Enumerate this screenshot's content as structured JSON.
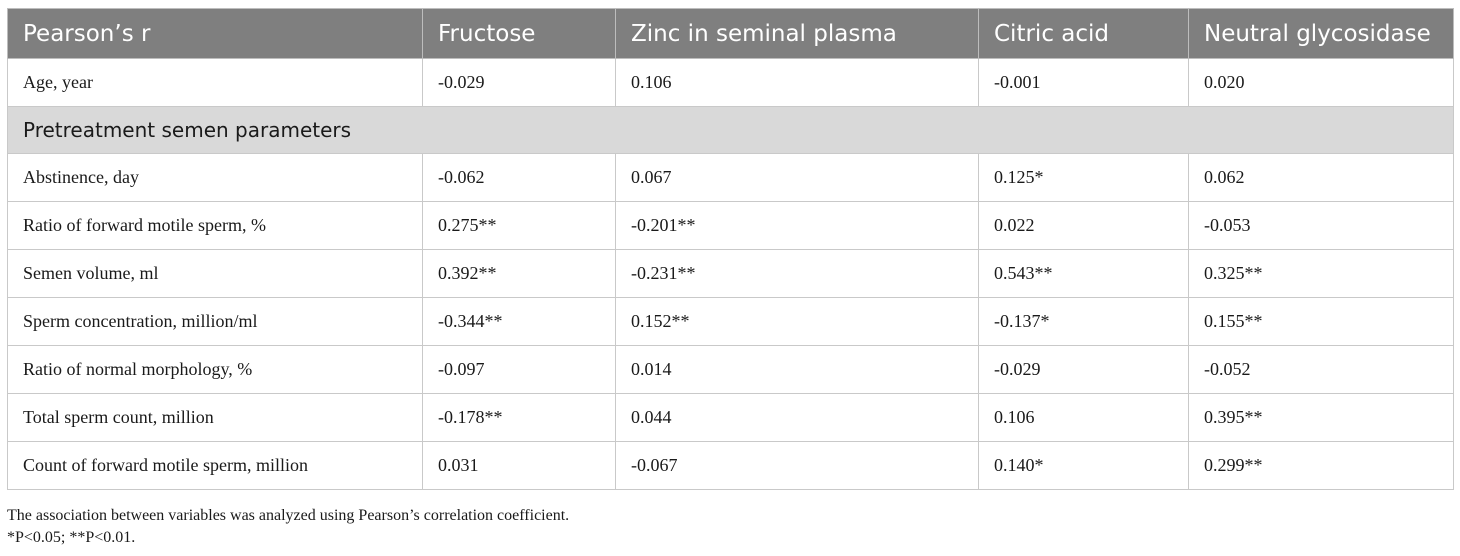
{
  "header": [
    "Pearson’s r",
    "Fructose",
    "Zinc in seminal plasma",
    "Citric acid",
    "Neutral glycosidase"
  ],
  "rows": [
    {
      "label": "Age, year",
      "values": [
        "-0.029",
        "0.106",
        "-0.001",
        "0.020"
      ]
    }
  ],
  "section": "Pretreatment semen parameters",
  "section_rows": [
    {
      "label": "Abstinence, day",
      "values": [
        "-0.062",
        "0.067",
        "0.125*",
        "0.062"
      ]
    },
    {
      "label": "Ratio of forward motile sperm, %",
      "values": [
        "0.275**",
        "-0.201**",
        "0.022",
        "-0.053"
      ]
    },
    {
      "label": "Semen volume, ml",
      "values": [
        "0.392**",
        "-0.231**",
        "0.543**",
        "0.325**"
      ]
    },
    {
      "label": "Sperm concentration, million/ml",
      "values": [
        "-0.344**",
        "0.152**",
        "-0.137*",
        "0.155**"
      ]
    },
    {
      "label": "Ratio of normal morphology, %",
      "values": [
        "-0.097",
        "0.014",
        "-0.029",
        "-0.052"
      ]
    },
    {
      "label": "Total sperm count, million",
      "values": [
        "-0.178**",
        "0.044",
        "0.106",
        "0.395**"
      ]
    },
    {
      "label": "Count of forward motile sperm, million",
      "values": [
        "0.031",
        "-0.067",
        "0.140*",
        "0.299**"
      ]
    }
  ],
  "footnotes": [
    "The association between variables was analyzed using Pearson’s correlation coefficient.",
    "*P<0.05; **P<0.01."
  ]
}
